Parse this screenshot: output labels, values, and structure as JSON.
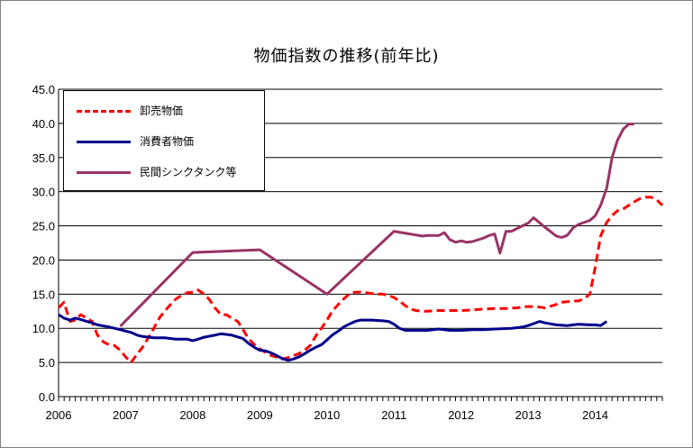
{
  "chart_data": {
    "type": "line",
    "title": "物価指数の推移(前年比)",
    "xlabel": "",
    "ylabel": "",
    "ylim": [
      0,
      45
    ],
    "xlim": [
      2006,
      2015
    ],
    "y_ticks": [
      "0.0",
      "5.0",
      "10.0",
      "15.0",
      "20.0",
      "25.0",
      "30.0",
      "35.0",
      "40.0",
      "45.0"
    ],
    "x_ticks": [
      "2006",
      "2007",
      "2008",
      "2009",
      "2010",
      "2011",
      "2012",
      "2013",
      "2014"
    ],
    "grid": "horizontal",
    "legend_position": "top-left",
    "series": [
      {
        "name": "卸売物価",
        "color": "#ff0000",
        "style": "dashed",
        "points": [
          [
            2006.0,
            13.0
          ],
          [
            2006.08,
            13.8
          ],
          [
            2006.17,
            11.0
          ],
          [
            2006.25,
            11.2
          ],
          [
            2006.33,
            12.0
          ],
          [
            2006.42,
            11.5
          ],
          [
            2006.5,
            11.0
          ],
          [
            2006.58,
            9.0
          ],
          [
            2006.67,
            8.0
          ],
          [
            2006.75,
            7.6
          ],
          [
            2006.83,
            7.5
          ],
          [
            2006.92,
            6.8
          ],
          [
            2007.0,
            5.8
          ],
          [
            2007.08,
            5.0
          ],
          [
            2007.17,
            6.2
          ],
          [
            2007.25,
            7.2
          ],
          [
            2007.33,
            8.5
          ],
          [
            2007.42,
            10.0
          ],
          [
            2007.5,
            11.5
          ],
          [
            2007.58,
            12.5
          ],
          [
            2007.67,
            13.5
          ],
          [
            2007.75,
            14.3
          ],
          [
            2007.83,
            14.8
          ],
          [
            2007.92,
            15.2
          ],
          [
            2008.0,
            15.3
          ],
          [
            2008.08,
            15.6
          ],
          [
            2008.17,
            15.0
          ],
          [
            2008.25,
            14.2
          ],
          [
            2008.33,
            13.0
          ],
          [
            2008.42,
            12.0
          ],
          [
            2008.5,
            12.0
          ],
          [
            2008.58,
            11.5
          ],
          [
            2008.67,
            11.0
          ],
          [
            2008.75,
            9.8
          ],
          [
            2008.83,
            8.5
          ],
          [
            2008.92,
            7.6
          ],
          [
            2009.0,
            7.0
          ],
          [
            2009.08,
            6.5
          ],
          [
            2009.17,
            6.0
          ],
          [
            2009.25,
            5.8
          ],
          [
            2009.33,
            5.5
          ],
          [
            2009.42,
            5.7
          ],
          [
            2009.5,
            6.0
          ],
          [
            2009.58,
            6.3
          ],
          [
            2009.67,
            6.8
          ],
          [
            2009.75,
            7.5
          ],
          [
            2009.83,
            8.8
          ],
          [
            2009.92,
            10.0
          ],
          [
            2010.0,
            11.2
          ],
          [
            2010.08,
            12.5
          ],
          [
            2010.17,
            13.5
          ],
          [
            2010.25,
            14.3
          ],
          [
            2010.33,
            15.0
          ],
          [
            2010.42,
            15.3
          ],
          [
            2010.5,
            15.3
          ],
          [
            2010.58,
            15.2
          ],
          [
            2010.67,
            15.1
          ],
          [
            2010.75,
            15.0
          ],
          [
            2010.83,
            15.0
          ],
          [
            2010.92,
            14.8
          ],
          [
            2011.0,
            14.5
          ],
          [
            2011.08,
            14.0
          ],
          [
            2011.17,
            13.3
          ],
          [
            2011.25,
            12.8
          ],
          [
            2011.33,
            12.6
          ],
          [
            2011.42,
            12.5
          ],
          [
            2011.5,
            12.5
          ],
          [
            2011.67,
            12.6
          ],
          [
            2011.83,
            12.6
          ],
          [
            2012.0,
            12.6
          ],
          [
            2012.17,
            12.7
          ],
          [
            2012.33,
            12.8
          ],
          [
            2012.5,
            12.9
          ],
          [
            2012.67,
            12.9
          ],
          [
            2012.83,
            13.0
          ],
          [
            2013.0,
            13.2
          ],
          [
            2013.17,
            13.1
          ],
          [
            2013.25,
            13.0
          ],
          [
            2013.42,
            13.5
          ],
          [
            2013.5,
            13.8
          ],
          [
            2013.67,
            14.0
          ],
          [
            2013.75,
            14.0
          ],
          [
            2013.83,
            14.3
          ],
          [
            2013.92,
            15.0
          ],
          [
            2014.0,
            19.0
          ],
          [
            2014.08,
            23.5
          ],
          [
            2014.17,
            25.5
          ],
          [
            2014.25,
            26.5
          ],
          [
            2014.33,
            27.2
          ],
          [
            2014.42,
            27.5
          ],
          [
            2014.5,
            28.0
          ],
          [
            2014.58,
            28.5
          ],
          [
            2014.67,
            29.0
          ],
          [
            2014.75,
            29.2
          ],
          [
            2014.83,
            29.2
          ],
          [
            2014.92,
            28.8
          ],
          [
            2015.0,
            28.0
          ]
        ]
      },
      {
        "name": "消費者物価",
        "color": "#00008b",
        "style": "solid",
        "points": [
          [
            2006.0,
            12.0
          ],
          [
            2006.08,
            11.5
          ],
          [
            2006.17,
            11.2
          ],
          [
            2006.25,
            11.5
          ],
          [
            2006.33,
            11.3
          ],
          [
            2006.42,
            11.0
          ],
          [
            2006.5,
            10.8
          ],
          [
            2006.58,
            10.5
          ],
          [
            2006.75,
            10.2
          ],
          [
            2006.92,
            9.8
          ],
          [
            2007.0,
            9.6
          ],
          [
            2007.08,
            9.4
          ],
          [
            2007.17,
            9.0
          ],
          [
            2007.25,
            8.8
          ],
          [
            2007.42,
            8.6
          ],
          [
            2007.58,
            8.6
          ],
          [
            2007.75,
            8.4
          ],
          [
            2007.92,
            8.4
          ],
          [
            2008.0,
            8.2
          ],
          [
            2008.08,
            8.4
          ],
          [
            2008.17,
            8.7
          ],
          [
            2008.33,
            9.0
          ],
          [
            2008.42,
            9.2
          ],
          [
            2008.58,
            9.0
          ],
          [
            2008.75,
            8.5
          ],
          [
            2008.83,
            7.8
          ],
          [
            2008.92,
            7.2
          ],
          [
            2009.0,
            6.8
          ],
          [
            2009.08,
            6.7
          ],
          [
            2009.17,
            6.4
          ],
          [
            2009.25,
            6.0
          ],
          [
            2009.33,
            5.6
          ],
          [
            2009.42,
            5.3
          ],
          [
            2009.5,
            5.5
          ],
          [
            2009.58,
            5.8
          ],
          [
            2009.67,
            6.3
          ],
          [
            2009.75,
            6.8
          ],
          [
            2009.83,
            7.2
          ],
          [
            2009.92,
            7.6
          ],
          [
            2010.0,
            8.3
          ],
          [
            2010.08,
            9.0
          ],
          [
            2010.17,
            9.6
          ],
          [
            2010.25,
            10.2
          ],
          [
            2010.33,
            10.6
          ],
          [
            2010.42,
            11.0
          ],
          [
            2010.5,
            11.2
          ],
          [
            2010.67,
            11.2
          ],
          [
            2010.83,
            11.1
          ],
          [
            2010.92,
            11.0
          ],
          [
            2011.0,
            10.6
          ],
          [
            2011.08,
            10.0
          ],
          [
            2011.17,
            9.7
          ],
          [
            2011.33,
            9.7
          ],
          [
            2011.5,
            9.7
          ],
          [
            2011.67,
            9.9
          ],
          [
            2011.75,
            9.8
          ],
          [
            2011.83,
            9.7
          ],
          [
            2012.0,
            9.7
          ],
          [
            2012.17,
            9.8
          ],
          [
            2012.33,
            9.8
          ],
          [
            2012.5,
            9.9
          ],
          [
            2012.75,
            10.0
          ],
          [
            2012.92,
            10.2
          ],
          [
            2013.0,
            10.4
          ],
          [
            2013.17,
            11.0
          ],
          [
            2013.25,
            10.8
          ],
          [
            2013.42,
            10.5
          ],
          [
            2013.58,
            10.4
          ],
          [
            2013.75,
            10.6
          ],
          [
            2013.92,
            10.5
          ],
          [
            2014.0,
            10.5
          ],
          [
            2014.08,
            10.4
          ],
          [
            2014.17,
            11.0
          ]
        ]
      },
      {
        "name": "民間シンクタンク等",
        "color": "#993366",
        "style": "solid",
        "points": [
          [
            2006.92,
            10.3
          ],
          [
            2008.0,
            21.1
          ],
          [
            2009.0,
            21.5
          ],
          [
            2010.0,
            15.0
          ],
          [
            2011.0,
            24.2
          ],
          [
            2011.42,
            23.5
          ],
          [
            2011.5,
            23.6
          ],
          [
            2011.67,
            23.6
          ],
          [
            2011.75,
            24.0
          ],
          [
            2011.83,
            23.0
          ],
          [
            2011.92,
            22.6
          ],
          [
            2012.0,
            22.8
          ],
          [
            2012.08,
            22.6
          ],
          [
            2012.17,
            22.7
          ],
          [
            2012.33,
            23.2
          ],
          [
            2012.42,
            23.6
          ],
          [
            2012.5,
            23.8
          ],
          [
            2012.58,
            21.0
          ],
          [
            2012.67,
            24.2
          ],
          [
            2012.75,
            24.2
          ],
          [
            2012.83,
            24.6
          ],
          [
            2013.0,
            25.4
          ],
          [
            2013.08,
            26.2
          ],
          [
            2013.25,
            24.8
          ],
          [
            2013.42,
            23.5
          ],
          [
            2013.5,
            23.3
          ],
          [
            2013.58,
            23.6
          ],
          [
            2013.67,
            24.7
          ],
          [
            2013.75,
            25.2
          ],
          [
            2013.92,
            25.8
          ],
          [
            2014.0,
            26.5
          ],
          [
            2014.08,
            28.0
          ],
          [
            2014.17,
            30.5
          ],
          [
            2014.25,
            35.0
          ],
          [
            2014.33,
            37.5
          ],
          [
            2014.42,
            39.2
          ],
          [
            2014.5,
            39.9
          ],
          [
            2014.58,
            39.9
          ]
        ]
      }
    ]
  }
}
